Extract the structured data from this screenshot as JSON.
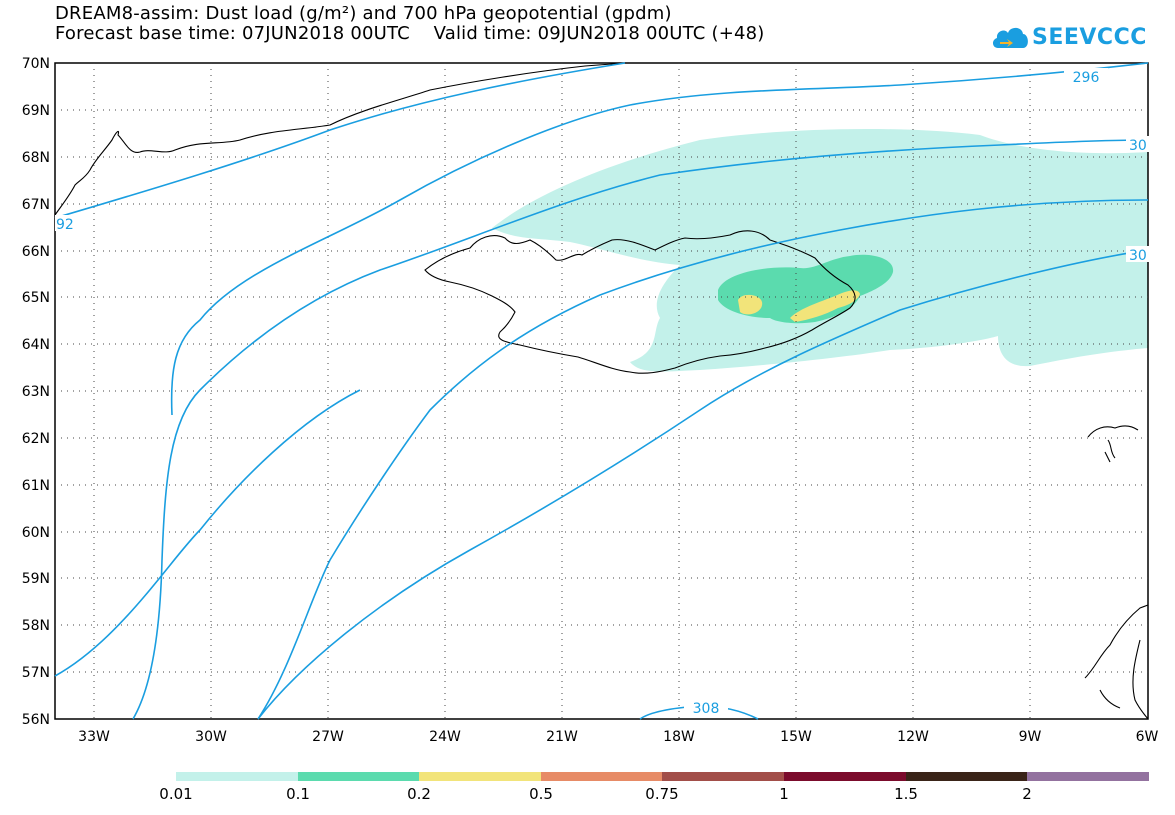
{
  "title": {
    "line1": "DREAM8-assim: Dust load (g/m²) and 700 hPa geopotential (gpdm)",
    "line2": "Forecast base time: 07JUN2018 00UTC    Valid time: 09JUN2018 00UTC (+48)"
  },
  "logo": {
    "text": "SEEVCCC",
    "icon": "cloud-icon",
    "color": "#1a9ee0"
  },
  "map": {
    "lat_labels": [
      "70N",
      "69N",
      "68N",
      "67N",
      "66N",
      "65N",
      "64N",
      "63N",
      "62N",
      "61N",
      "60N",
      "59N",
      "58N",
      "57N",
      "56N"
    ],
    "lon_labels": [
      "33W",
      "30W",
      "27W",
      "24W",
      "21W",
      "18W",
      "15W",
      "12W",
      "9W",
      "6W"
    ],
    "contour_labels": [
      "296",
      "30",
      "30",
      "92",
      "308"
    ],
    "contour_color": "#1a9ee0"
  },
  "colorbar": {
    "labels": [
      "0.01",
      "0.1",
      "0.2",
      "0.5",
      "0.75",
      "1",
      "1.5",
      "2"
    ],
    "colors": [
      "#c3f1ea",
      "#5bdbae",
      "#f2e47a",
      "#e78b66",
      "#a24e49",
      "#7b0b2c",
      "#3a2418",
      "#93729f"
    ]
  }
}
